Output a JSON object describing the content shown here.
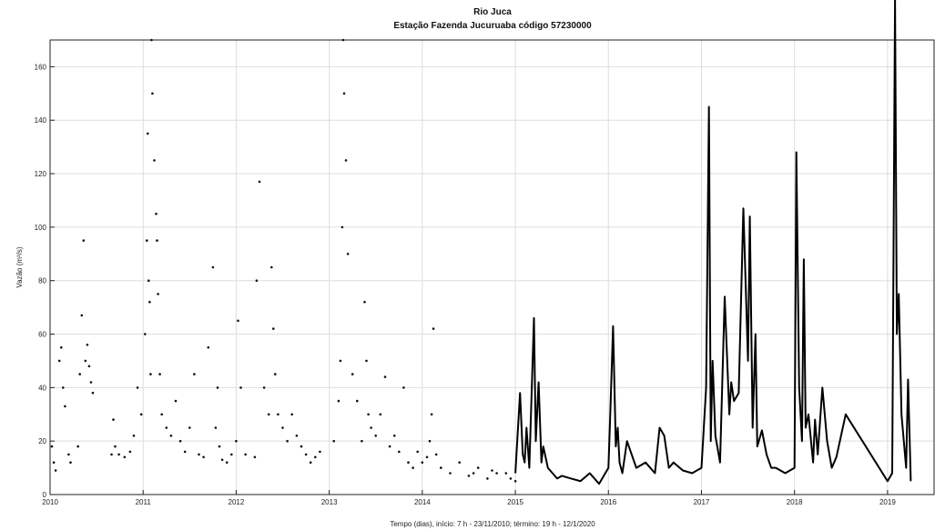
{
  "chart_data": {
    "type": "line",
    "title": "Rio Juca",
    "subtitle": "Estação Fazenda Jucuruaba código 57230000",
    "xlabel": "Tempo (dias), início: 7 h - 23/11/2010; término: 19 h - 12/1/2020",
    "ylabel": "Vazão (m³/s)",
    "xlim": [
      2010,
      2019.5
    ],
    "ylim": [
      0,
      170
    ],
    "x_ticks": [
      "2010",
      "2011",
      "2012",
      "2013",
      "2014",
      "2015",
      "2016",
      "2017",
      "2018",
      "2019"
    ],
    "y_ticks": [
      0,
      20,
      40,
      60,
      80,
      100,
      120,
      140,
      160
    ],
    "grid": true,
    "legend": "none",
    "series": [
      {
        "style": "scatter",
        "x": [
          2010.02,
          2010.04,
          2010.06,
          2010.1,
          2010.12,
          2010.14,
          2010.16,
          2010.2,
          2010.22,
          2010.3,
          2010.32,
          2010.34,
          2010.36,
          2010.38,
          2010.4,
          2010.42,
          2010.44,
          2010.46,
          2010.66,
          2010.68,
          2010.7,
          2010.74,
          2010.8,
          2010.86,
          2010.9,
          2010.94,
          2010.98,
          2011.02,
          2011.04,
          2011.05,
          2011.06,
          2011.07,
          2011.08,
          2011.09,
          2011.1,
          2011.12,
          2011.14,
          2011.15,
          2011.16,
          2011.18,
          2011.2,
          2011.25,
          2011.3,
          2011.35,
          2011.4,
          2011.45,
          2011.5,
          2011.55,
          2011.6,
          2011.65,
          2011.7,
          2011.75,
          2011.78,
          2011.8,
          2011.82,
          2011.85,
          2011.9,
          2011.95,
          2012.0,
          2012.02,
          2012.05,
          2012.1,
          2012.2,
          2012.22,
          2012.25,
          2012.3,
          2012.35,
          2012.38,
          2012.4,
          2012.42,
          2012.45,
          2012.5,
          2012.55,
          2012.6,
          2012.65,
          2012.7,
          2012.75,
          2012.8,
          2012.85,
          2012.9,
          2013.05,
          2013.1,
          2013.12,
          2013.14,
          2013.15,
          2013.16,
          2013.18,
          2013.2,
          2013.25,
          2013.3,
          2013.35,
          2013.38,
          2013.4,
          2013.42,
          2013.45,
          2013.5,
          2013.55,
          2013.6,
          2013.65,
          2013.7,
          2013.75,
          2013.8,
          2013.85,
          2013.9,
          2013.95,
          2014.0,
          2014.05,
          2014.08,
          2014.1,
          2014.12,
          2014.15,
          2014.2,
          2014.3,
          2014.4,
          2014.5,
          2014.55,
          2014.6,
          2014.7,
          2014.75,
          2014.8,
          2014.9,
          2014.95,
          2015.0
        ],
        "y": [
          18,
          12,
          9,
          50,
          55,
          40,
          33,
          15,
          12,
          18,
          45,
          67,
          95,
          50,
          56,
          48,
          42,
          38,
          15,
          28,
          18,
          15,
          14,
          16,
          22,
          40,
          30,
          60,
          95,
          135,
          80,
          72,
          45,
          170,
          150,
          125,
          105,
          95,
          75,
          45,
          30,
          25,
          22,
          35,
          20,
          16,
          25,
          45,
          15,
          14,
          55,
          85,
          25,
          40,
          18,
          13,
          12,
          15,
          20,
          65,
          40,
          15,
          14,
          80,
          117,
          40,
          30,
          85,
          62,
          45,
          30,
          25,
          20,
          30,
          22,
          18,
          15,
          12,
          14,
          16,
          20,
          35,
          50,
          100,
          170,
          150,
          125,
          90,
          45,
          35,
          20,
          72,
          50,
          30,
          25,
          22,
          30,
          44,
          18,
          22,
          16,
          40,
          12,
          10,
          16,
          12,
          14,
          20,
          30,
          62,
          15,
          10,
          8,
          12,
          7,
          8,
          10,
          6,
          9,
          8,
          8,
          6,
          5
        ]
      },
      {
        "style": "line",
        "x": [
          2015.0,
          2015.05,
          2015.08,
          2015.1,
          2015.12,
          2015.15,
          2015.2,
          2015.22,
          2015.25,
          2015.28,
          2015.3,
          2015.35,
          2015.4,
          2015.45,
          2015.5,
          2015.6,
          2015.7,
          2015.8,
          2015.9,
          2016.0,
          2016.02,
          2016.05,
          2016.08,
          2016.1,
          2016.12,
          2016.15,
          2016.2,
          2016.3,
          2016.4,
          2016.5,
          2016.55,
          2016.6,
          2016.65,
          2016.7,
          2016.8,
          2016.9,
          2017.0,
          2017.05,
          2017.08,
          2017.1,
          2017.12,
          2017.15,
          2017.2,
          2017.25,
          2017.3,
          2017.32,
          2017.35,
          2017.4,
          2017.45,
          2017.5,
          2017.52,
          2017.55,
          2017.58,
          2017.6,
          2017.65,
          2017.7,
          2017.75,
          2017.8,
          2017.9,
          2018.0,
          2018.02,
          2018.05,
          2018.08,
          2018.1,
          2018.12,
          2018.15,
          2018.2,
          2018.22,
          2018.25,
          2018.3,
          2018.35,
          2018.4,
          2018.45,
          2018.5,
          2018.55,
          2019.0,
          2019.05,
          2019.08,
          2019.1,
          2019.12,
          2019.15,
          2019.2,
          2019.22,
          2019.25
        ],
        "y": [
          8,
          38,
          15,
          12,
          25,
          10,
          66,
          20,
          42,
          12,
          18,
          10,
          8,
          6,
          7,
          6,
          5,
          8,
          4,
          10,
          30,
          63,
          18,
          25,
          12,
          8,
          20,
          10,
          12,
          8,
          25,
          22,
          10,
          12,
          9,
          8,
          10,
          40,
          145,
          20,
          50,
          22,
          12,
          74,
          30,
          42,
          35,
          38,
          107,
          50,
          104,
          25,
          60,
          18,
          24,
          15,
          10,
          10,
          8,
          10,
          128,
          40,
          20,
          88,
          25,
          30,
          12,
          28,
          15,
          40,
          20,
          10,
          14,
          22,
          30,
          5,
          8,
          185,
          60,
          75,
          30,
          10,
          43,
          5
        ]
      }
    ]
  }
}
